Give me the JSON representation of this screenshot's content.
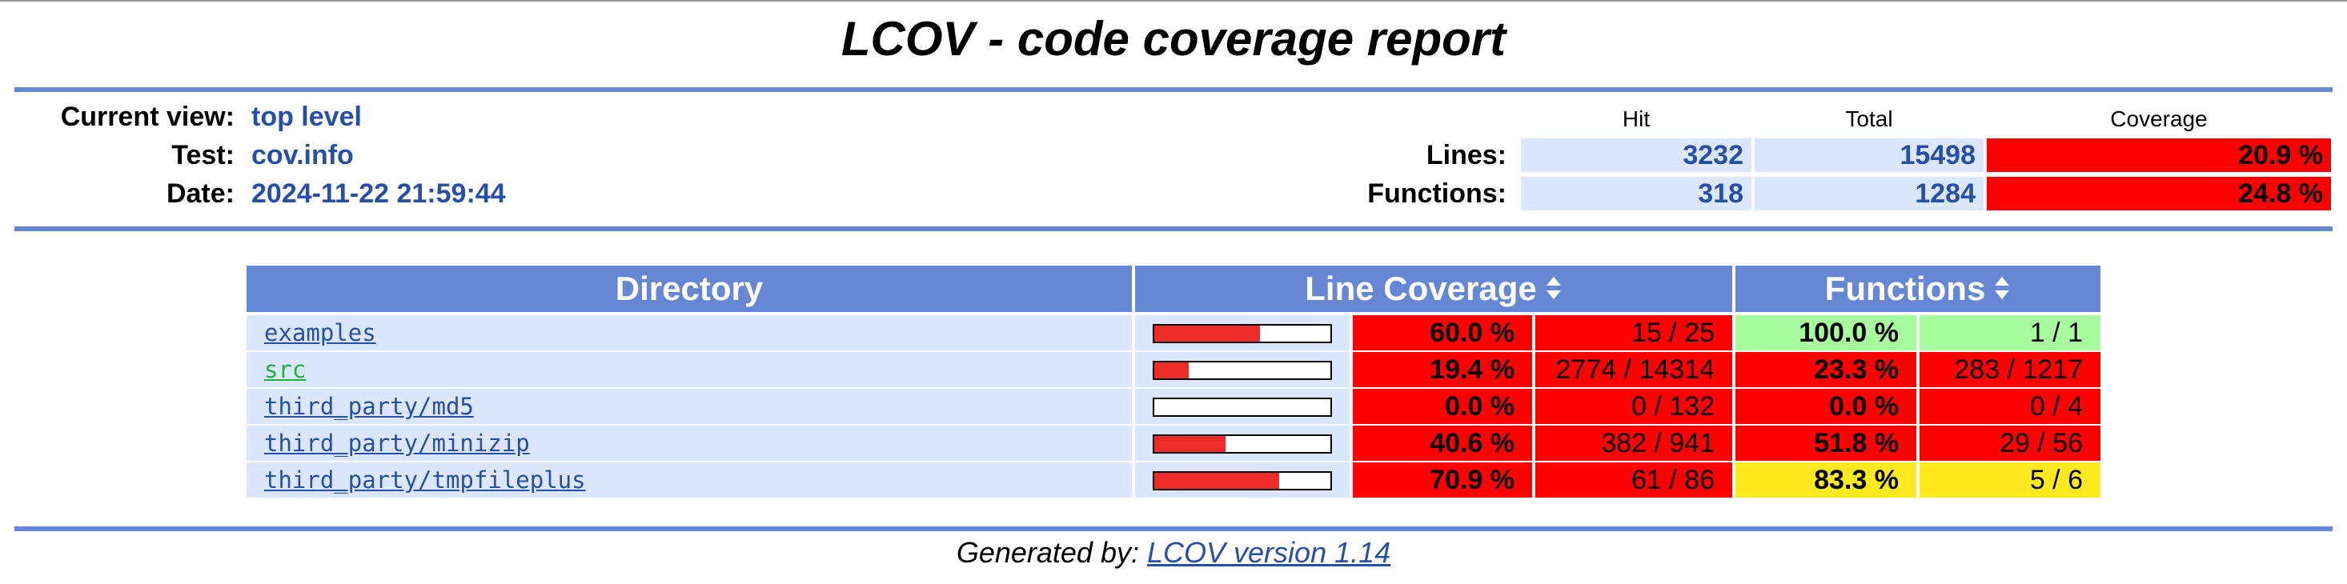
{
  "title": "LCOV - code coverage report",
  "header": {
    "current_view_label": "Current view:",
    "current_view": "top level",
    "test_label": "Test:",
    "test": "cov.info",
    "date_label": "Date:",
    "date": "2024-11-22 21:59:44",
    "col_hit": "Hit",
    "col_total": "Total",
    "col_coverage": "Coverage",
    "lines_label": "Lines:",
    "lines_hit": "3232",
    "lines_total": "15498",
    "lines_coverage": "20.9 %",
    "functions_label": "Functions:",
    "functions_hit": "318",
    "functions_total": "1284",
    "functions_coverage": "24.8 %"
  },
  "table": {
    "col_directory": "Directory",
    "col_line_coverage": "Line Coverage",
    "col_functions": "Functions",
    "rows": [
      {
        "name": "examples",
        "bar": 0.6,
        "line_pct": "60.0 %",
        "line_ratio": "15 / 25",
        "fn_pct": "100.0 %",
        "fn_ratio": "1 / 1"
      },
      {
        "name": "src",
        "bar": 0.194,
        "line_pct": "19.4 %",
        "line_ratio": "2774 / 14314",
        "fn_pct": "23.3 %",
        "fn_ratio": "283 / 1217"
      },
      {
        "name": "third_party/md5",
        "bar": 0.0,
        "line_pct": "0.0 %",
        "line_ratio": "0 / 132",
        "fn_pct": "0.0 %",
        "fn_ratio": "0 / 4"
      },
      {
        "name": "third_party/minizip",
        "bar": 0.406,
        "line_pct": "40.6 %",
        "line_ratio": "382 / 941",
        "fn_pct": "51.8 %",
        "fn_ratio": "29 / 56"
      },
      {
        "name": "third_party/tmpfileplus",
        "bar": 0.709,
        "line_pct": "70.9 %",
        "line_ratio": "61 / 86",
        "fn_pct": "83.3 %",
        "fn_ratio": "5 / 6"
      }
    ]
  },
  "footer": {
    "generated_by": "Generated by:",
    "link": "LCOV version 1.14"
  }
}
